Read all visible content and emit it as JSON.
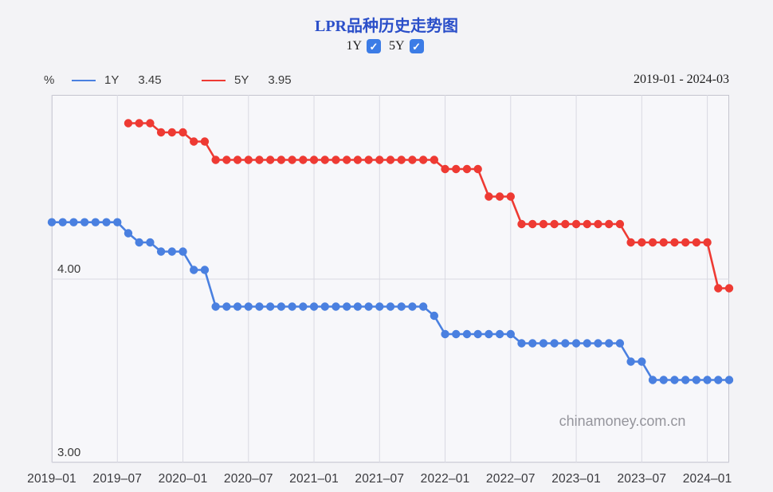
{
  "header": {
    "title": "LPR品种历史走势图",
    "toggles": [
      {
        "label": "1Y",
        "checked": true
      },
      {
        "label": "5Y",
        "checked": true
      }
    ],
    "check_glyph": "✓",
    "date_range": "2019-01 - 2024-03"
  },
  "watermark": "chinamoney.com.cn",
  "theme": {
    "accent_blue": "#3c7ce6",
    "title_blue": "#2b4fc9",
    "grid": "#d9d9e2",
    "plot_background": "#f7f7fa",
    "page_background": "#f3f3f6",
    "plot_border": "#c5c5cf"
  },
  "chart_data": {
    "type": "line",
    "title": "LPR品种历史走势图",
    "ylabel": "%",
    "xlabel": "",
    "x_start": "2019-01",
    "x_end": "2024-03",
    "x_range_label": "2019-01 - 2024-03",
    "ylim": [
      2.97,
      5.03
    ],
    "grid": true,
    "legend_position": "top-left",
    "x_ticks": [
      {
        "label": "2019–01",
        "month": 0
      },
      {
        "label": "2019–07",
        "month": 6
      },
      {
        "label": "2020–01",
        "month": 12
      },
      {
        "label": "2020–07",
        "month": 18
      },
      {
        "label": "2021–01",
        "month": 24
      },
      {
        "label": "2021–07",
        "month": 30
      },
      {
        "label": "2022–01",
        "month": 36
      },
      {
        "label": "2022–07",
        "month": 42
      },
      {
        "label": "2023–01",
        "month": 48
      },
      {
        "label": "2023–07",
        "month": 54
      },
      {
        "label": "2024–01",
        "month": 60
      }
    ],
    "y_ticks": [
      {
        "label": "4.00",
        "value": 4.0
      },
      {
        "label": "3.00",
        "value": 3.0
      }
    ],
    "series": [
      {
        "name": "1Y",
        "color": "#4a80e0",
        "latest_value": "3.45",
        "start": "2019-01",
        "month_offset": 0,
        "values": [
          4.31,
          4.31,
          4.31,
          4.31,
          4.31,
          4.31,
          4.31,
          4.25,
          4.2,
          4.2,
          4.15,
          4.15,
          4.15,
          4.05,
          4.05,
          3.85,
          3.85,
          3.85,
          3.85,
          3.85,
          3.85,
          3.85,
          3.85,
          3.85,
          3.85,
          3.85,
          3.85,
          3.85,
          3.85,
          3.85,
          3.85,
          3.85,
          3.85,
          3.85,
          3.85,
          3.8,
          3.7,
          3.7,
          3.7,
          3.7,
          3.7,
          3.7,
          3.7,
          3.65,
          3.65,
          3.65,
          3.65,
          3.65,
          3.65,
          3.65,
          3.65,
          3.65,
          3.65,
          3.55,
          3.55,
          3.45,
          3.45,
          3.45,
          3.45,
          3.45,
          3.45,
          3.45,
          3.45
        ]
      },
      {
        "name": "5Y",
        "color": "#ee3a33",
        "latest_value": "3.95",
        "start": "2019-08",
        "month_offset": 7,
        "values": [
          4.85,
          4.85,
          4.85,
          4.8,
          4.8,
          4.8,
          4.75,
          4.75,
          4.65,
          4.65,
          4.65,
          4.65,
          4.65,
          4.65,
          4.65,
          4.65,
          4.65,
          4.65,
          4.65,
          4.65,
          4.65,
          4.65,
          4.65,
          4.65,
          4.65,
          4.65,
          4.65,
          4.65,
          4.65,
          4.6,
          4.6,
          4.6,
          4.6,
          4.45,
          4.45,
          4.45,
          4.3,
          4.3,
          4.3,
          4.3,
          4.3,
          4.3,
          4.3,
          4.3,
          4.3,
          4.3,
          4.2,
          4.2,
          4.2,
          4.2,
          4.2,
          4.2,
          4.2,
          4.2,
          3.95,
          3.95
        ]
      }
    ]
  }
}
